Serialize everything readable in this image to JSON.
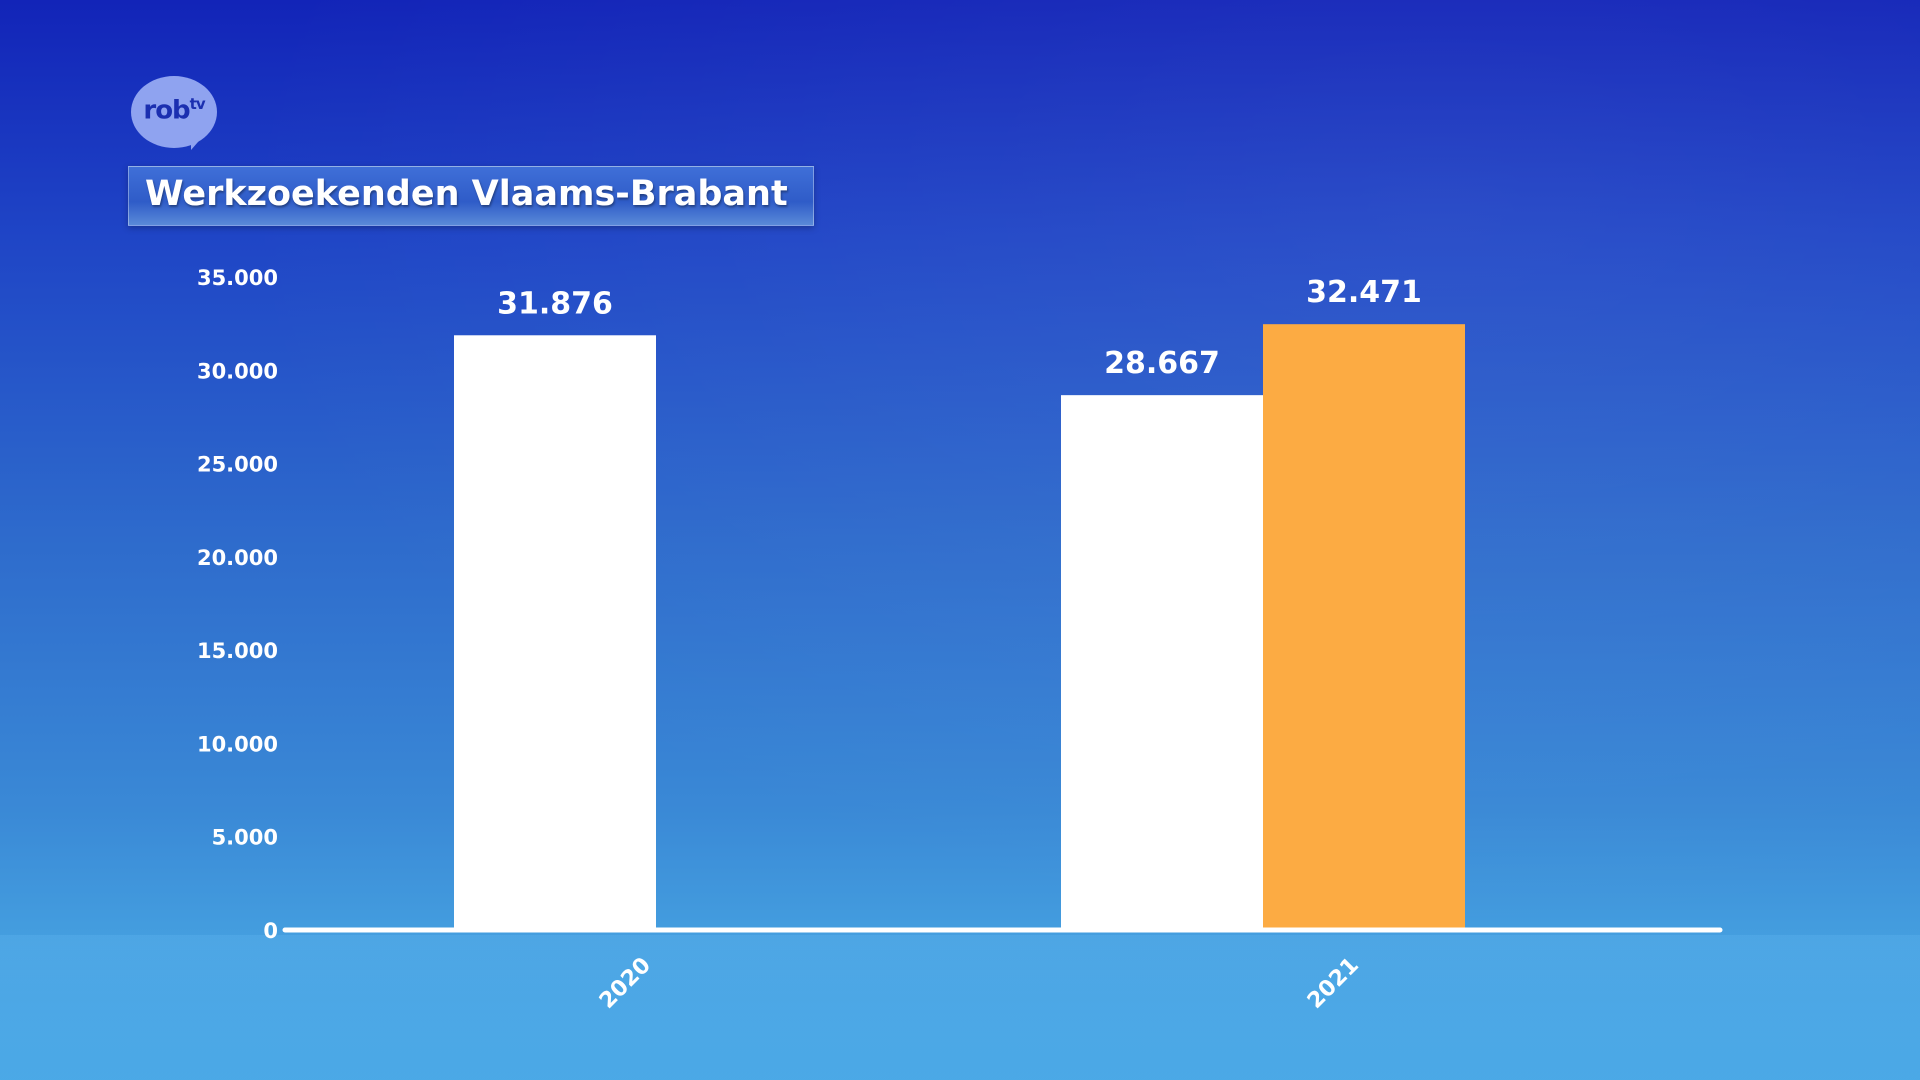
{
  "branding": {
    "logo_text": "rob",
    "logo_sup": "tv"
  },
  "chart_data": {
    "type": "bar",
    "title": "Werkzoekenden Vlaams-Brabant",
    "xlabel": "",
    "ylabel": "",
    "ylim": [
      0,
      35000
    ],
    "ytick_values": [
      0,
      5000,
      10000,
      15000,
      20000,
      25000,
      30000,
      35000
    ],
    "ytick_labels": [
      "0",
      "5.000",
      "10.000",
      "15.000",
      "20.000",
      "25.000",
      "30.000",
      "35.000"
    ],
    "categories": [
      "2020",
      "2021"
    ],
    "series": [
      {
        "color": "#ffffff",
        "values": [
          31876,
          28667
        ],
        "labels": [
          "31.876",
          "28.667"
        ]
      },
      {
        "color": "#fcab43",
        "values": [
          null,
          32471
        ],
        "labels": [
          null,
          "32.471"
        ]
      }
    ],
    "grid": false,
    "legend": "none"
  }
}
